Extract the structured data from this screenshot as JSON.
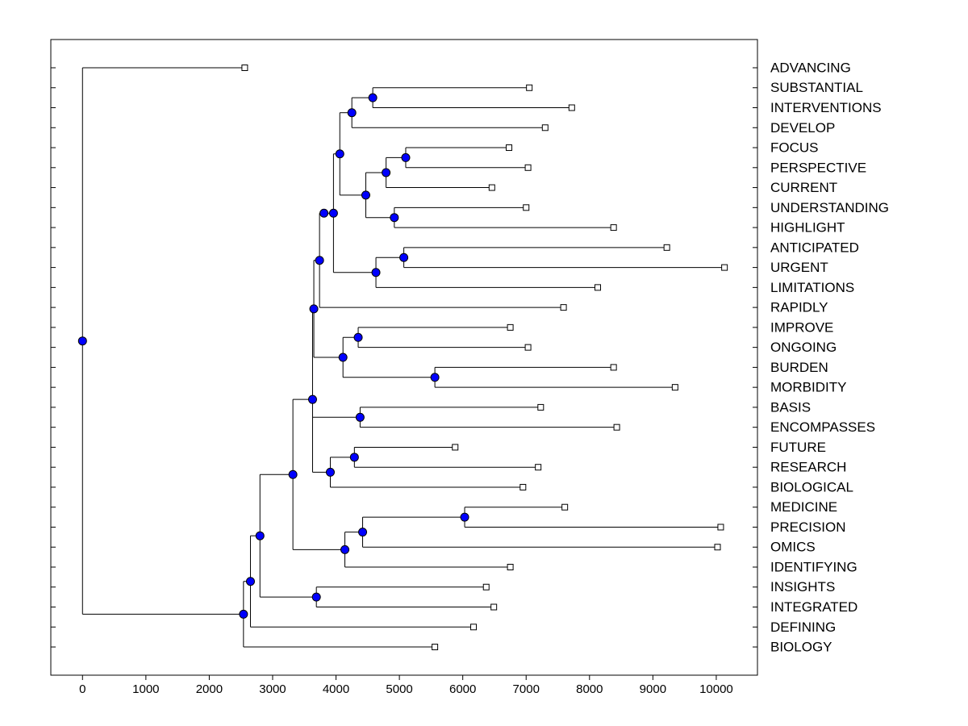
{
  "chart_data": {
    "type": "dendrogram",
    "title": "",
    "xlabel": "",
    "ylabel": "",
    "xlim": [
      -500,
      10650
    ],
    "x_ticks": [
      0,
      1000,
      2000,
      3000,
      4000,
      5000,
      6000,
      7000,
      8000,
      9000,
      10000
    ],
    "leaves": [
      {
        "label": "ADVANCING",
        "value": 2560
      },
      {
        "label": "SUBSTANTIAL",
        "value": 7050
      },
      {
        "label": "INTERVENTIONS",
        "value": 7720
      },
      {
        "label": "DEVELOP",
        "value": 7300
      },
      {
        "label": "FOCUS",
        "value": 6730
      },
      {
        "label": "PERSPECTIVE",
        "value": 7030
      },
      {
        "label": "CURRENT",
        "value": 6460
      },
      {
        "label": "UNDERSTANDING",
        "value": 7000
      },
      {
        "label": "HIGHLIGHT",
        "value": 8380
      },
      {
        "label": "ANTICIPATED",
        "value": 9220
      },
      {
        "label": "URGENT",
        "value": 10130
      },
      {
        "label": "LIMITATIONS",
        "value": 8130
      },
      {
        "label": "RAPIDLY",
        "value": 7590
      },
      {
        "label": "IMPROVE",
        "value": 6750
      },
      {
        "label": "ONGOING",
        "value": 7030
      },
      {
        "label": "BURDEN",
        "value": 8380
      },
      {
        "label": "MORBIDITY",
        "value": 9350
      },
      {
        "label": "BASIS",
        "value": 7230
      },
      {
        "label": "ENCOMPASSES",
        "value": 8430
      },
      {
        "label": "FUTURE",
        "value": 5880
      },
      {
        "label": "RESEARCH",
        "value": 7190
      },
      {
        "label": "BIOLOGICAL",
        "value": 6950
      },
      {
        "label": "MEDICINE",
        "value": 7610
      },
      {
        "label": "PRECISION",
        "value": 10070
      },
      {
        "label": "OMICS",
        "value": 10020
      },
      {
        "label": "IDENTIFYING",
        "value": 6750
      },
      {
        "label": "INSIGHTS",
        "value": 6370
      },
      {
        "label": "INTEGRATED",
        "value": 6490
      },
      {
        "label": "DEFINING",
        "value": 6170
      },
      {
        "label": "BIOLOGY",
        "value": 5560
      }
    ],
    "merges": [
      {
        "id": "n_substantial_interventions",
        "value": 4580,
        "children": [
          "SUBSTANTIAL",
          "INTERVENTIONS"
        ]
      },
      {
        "id": "n_sub_develop",
        "value": 4250,
        "children": [
          "n_substantial_interventions",
          "DEVELOP"
        ]
      },
      {
        "id": "n_focus_perspective",
        "value": 5100,
        "children": [
          "FOCUS",
          "PERSPECTIVE"
        ]
      },
      {
        "id": "n_fp_current",
        "value": 4790,
        "children": [
          "n_focus_perspective",
          "CURRENT"
        ]
      },
      {
        "id": "n_understanding_highlight",
        "value": 4920,
        "children": [
          "UNDERSTANDING",
          "HIGHLIGHT"
        ]
      },
      {
        "id": "n_fpc_uh",
        "value": 4470,
        "children": [
          "n_fp_current",
          "n_understanding_highlight"
        ]
      },
      {
        "id": "n_top_mid",
        "value": 4060,
        "children": [
          "n_sub_develop",
          "n_fpc_uh"
        ]
      },
      {
        "id": "n_anticipated_urgent",
        "value": 5070,
        "children": [
          "ANTICIPATED",
          "URGENT"
        ]
      },
      {
        "id": "n_au_limitations",
        "value": 4630,
        "children": [
          "n_anticipated_urgent",
          "LIMITATIONS"
        ]
      },
      {
        "id": "n_upper_block",
        "value": 3960,
        "children": [
          "n_top_mid",
          "n_au_limitations"
        ]
      },
      {
        "id": "n_upper_block2",
        "value": 3810,
        "children": [
          "n_upper_block"
        ]
      },
      {
        "id": "n_upper_rapidly",
        "value": 3740,
        "children": [
          "n_upper_block2",
          "RAPIDLY"
        ]
      },
      {
        "id": "n_improve_ongoing",
        "value": 4350,
        "children": [
          "IMPROVE",
          "ONGOING"
        ]
      },
      {
        "id": "n_burden_morbidity",
        "value": 5560,
        "children": [
          "BURDEN",
          "MORBIDITY"
        ]
      },
      {
        "id": "n_io_bm",
        "value": 4110,
        "children": [
          "n_improve_ongoing",
          "n_burden_morbidity"
        ]
      },
      {
        "id": "n_upper_all",
        "value": 3650,
        "children": [
          "n_upper_rapidly",
          "n_io_bm"
        ]
      },
      {
        "id": "n_basis_encompasses",
        "value": 4380,
        "children": [
          "BASIS",
          "ENCOMPASSES"
        ]
      },
      {
        "id": "n_future_research",
        "value": 4290,
        "children": [
          "FUTURE",
          "RESEARCH"
        ]
      },
      {
        "id": "n_fr_biological",
        "value": 3910,
        "children": [
          "n_future_research",
          "BIOLOGICAL"
        ]
      },
      {
        "id": "n_mid_block",
        "value": 3630,
        "children": [
          "n_upper_all",
          "n_basis_encompasses",
          "n_fr_biological"
        ]
      },
      {
        "id": "n_medicine_precision",
        "value": 6030,
        "children": [
          "MEDICINE",
          "PRECISION"
        ]
      },
      {
        "id": "n_mp_omics",
        "value": 4420,
        "children": [
          "n_medicine_precision",
          "OMICS"
        ]
      },
      {
        "id": "n_mpo_identifying",
        "value": 4140,
        "children": [
          "n_mp_omics",
          "IDENTIFYING"
        ]
      },
      {
        "id": "n_big",
        "value": 3320,
        "children": [
          "n_mid_block",
          "n_mpo_identifying"
        ]
      },
      {
        "id": "n_insights_integrated",
        "value": 3690,
        "children": [
          "INSIGHTS",
          "INTEGRATED"
        ]
      },
      {
        "id": "n_big_ii",
        "value": 2800,
        "children": [
          "n_big",
          "n_insights_integrated"
        ]
      },
      {
        "id": "n_big_defining",
        "value": 2650,
        "children": [
          "n_big_ii",
          "DEFINING"
        ]
      },
      {
        "id": "n_big_biology",
        "value": 2540,
        "children": [
          "n_big_defining",
          "BIOLOGY"
        ]
      },
      {
        "id": "n_root",
        "value": 0,
        "children": [
          "ADVANCING",
          "n_big_biology"
        ]
      }
    ]
  }
}
